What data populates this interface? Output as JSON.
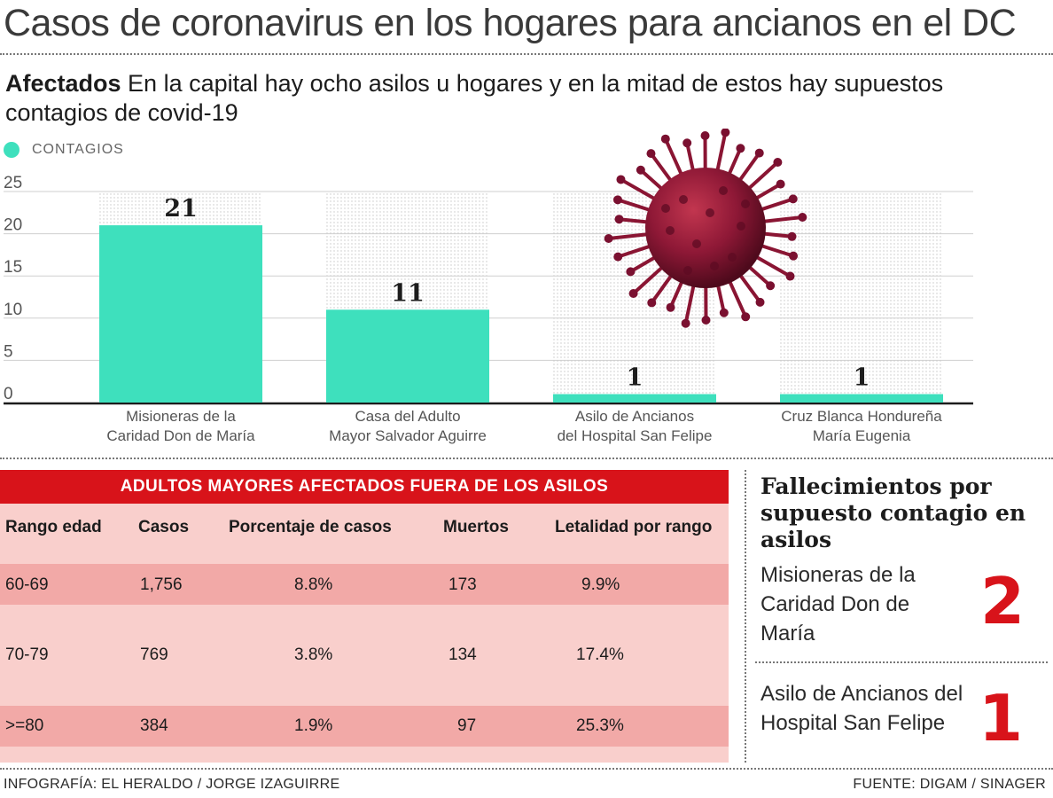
{
  "title": "Casos de coronavirus en los hogares para ancianos en el DC",
  "subtitle": {
    "bold": "Afectados",
    "text": "En la capital hay ocho asilos u hogares y en la mitad de estos hay supuestos contagios de covid-19"
  },
  "legend": {
    "label": "CONTAGIOS",
    "color": "#3ee0bd"
  },
  "chart_data": {
    "type": "bar",
    "categories": [
      [
        "Misioneras de la",
        "Caridad Don de María"
      ],
      [
        "Casa del Adulto",
        "Mayor Salvador Aguirre"
      ],
      [
        "Asilo de Ancianos",
        "del Hospital San Felipe"
      ],
      [
        "Cruz Blanca Hondureña",
        "María Eugenia"
      ]
    ],
    "values": [
      21,
      11,
      1,
      1
    ],
    "value_labels": [
      "21",
      "11",
      "1",
      "1"
    ],
    "series_name": "CONTAGIOS",
    "ylim": [
      0,
      25
    ],
    "yticks": [
      0,
      5,
      10,
      15,
      20,
      25
    ],
    "ytick_labels": [
      "0",
      "5",
      "10",
      "15",
      "20",
      "25"
    ],
    "grid": true,
    "bar_color": "#3ee0bd"
  },
  "table": {
    "title": "ADULTOS MAYORES AFECTADOS FUERA DE LOS ASILOS",
    "headers": [
      "Rango edad",
      "Casos",
      "Porcentaje de casos",
      "Muertos",
      "Letalidad por rango"
    ],
    "rows": [
      [
        "60-69",
        "1,756",
        "8.8%",
        "173",
        "9.9%"
      ],
      [
        "70-79",
        "769",
        "3.8%",
        "134",
        "17.4%"
      ],
      [
        ">=80",
        "384",
        "1.9%",
        "97",
        "25.3%"
      ]
    ]
  },
  "deaths": {
    "title": "Fallecimientos por supuesto contagio en asilos",
    "items": [
      {
        "name": "Misioneras de la Caridad Don de María",
        "count": "2"
      },
      {
        "name": "Asilo de Ancianos del Hospital San Felipe",
        "count": "1"
      }
    ]
  },
  "footer": {
    "credit": "INFOGRAFÍA: EL HERALDO / JORGE IZAGUIRRE",
    "source": "FUENTE: DIGAM / SINAGER"
  },
  "colors": {
    "accent_red": "#d8131a",
    "bar": "#3ee0bd",
    "table_bg": "#f9cfcc",
    "table_band": "#f2a9a7"
  }
}
